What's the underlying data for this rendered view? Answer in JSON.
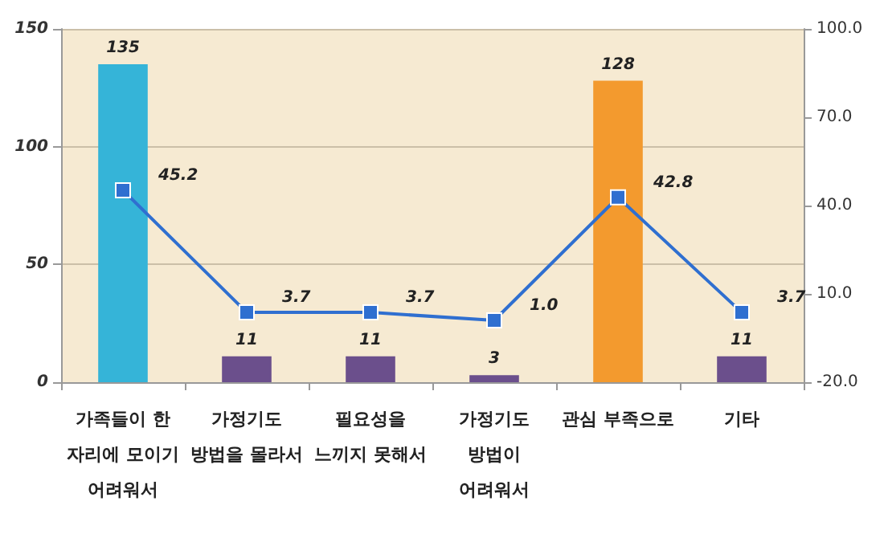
{
  "chart_data": {
    "type": "bar",
    "categories": [
      "가족들이 한\n자리에 모이기\n어려워서",
      "가정기도\n방법을 몰라서",
      "필요성을\n느끼지 못해서",
      "가정기도\n방법이\n어려워서",
      "관심 부족으로",
      "기타"
    ],
    "series": [
      {
        "colors": [
          "#35b4d8",
          "#6b4f8c",
          "#6b4f8c",
          "#6b4f8c",
          "#f39a2e",
          "#6b4f8c"
        ],
        "values": [
          135,
          11,
          11,
          3,
          128,
          11
        ]
      },
      {
        "type": "line",
        "axis": "y2",
        "color": "#2f6fd0",
        "values": [
          45.2,
          3.7,
          3.7,
          1.0,
          42.8,
          3.7
        ],
        "value_labels": [
          "45.2",
          "3.7",
          "3.7",
          "1.0",
          "42.8",
          "3.7"
        ]
      }
    ],
    "ylim": [
      0,
      150
    ],
    "yticks": [
      0,
      50,
      100,
      150
    ],
    "y2lim": [
      -20,
      100
    ],
    "y2ticks": [
      {
        "value": -20,
        "label": "-20.0"
      },
      {
        "value": 10,
        "label": "10.0"
      },
      {
        "value": 40,
        "label": "40.0"
      },
      {
        "value": 70,
        "label": "70.0"
      },
      {
        "value": 100,
        "label": "100.0"
      }
    ],
    "data_labels": true,
    "grid": "y",
    "marker": "square",
    "line_style": "solid"
  }
}
